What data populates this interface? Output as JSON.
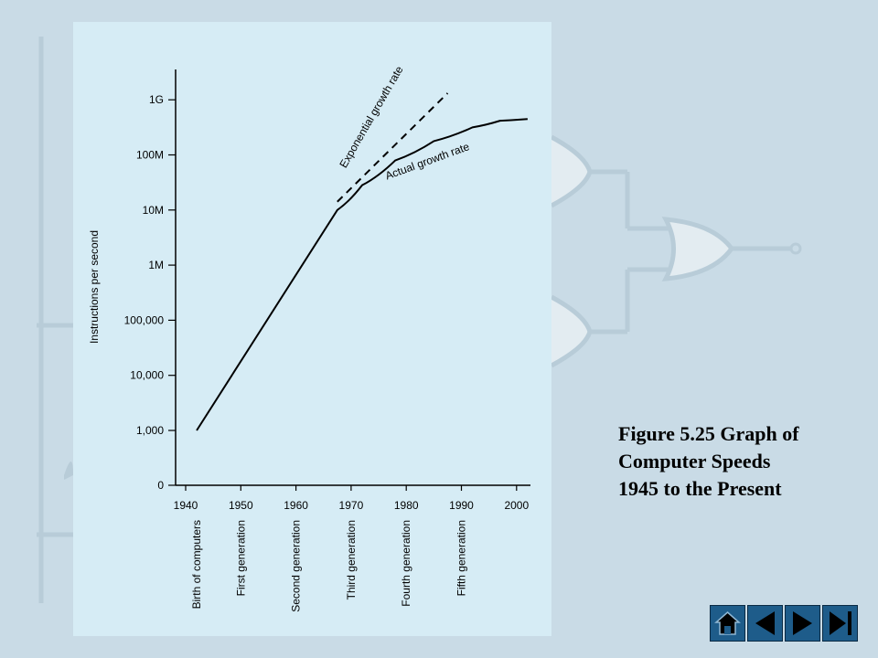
{
  "caption": {
    "line1": "Figure 5.25  Graph of",
    "line2": "Computer Speeds",
    "line3": "1945 to the Present"
  },
  "chart_data": {
    "type": "line",
    "title": "",
    "ylabel": "Instructions per second",
    "xlabel": "",
    "x_ticks": [
      "1940",
      "1950",
      "1960",
      "1970",
      "1980",
      "1990",
      "2000"
    ],
    "y_ticks": [
      "0",
      "1,000",
      "10,000",
      "100,000",
      "1M",
      "10M",
      "100M",
      "1G"
    ],
    "generations": [
      {
        "label": "Birth of computers",
        "year": 1942
      },
      {
        "label": "First generation",
        "year": 1950
      },
      {
        "label": "Second generation",
        "year": 1960
      },
      {
        "label": "Third generation",
        "year": 1970
      },
      {
        "label": "Fourth generation",
        "year": 1980
      },
      {
        "label": "Fifth generation",
        "year": 1990
      }
    ],
    "series": [
      {
        "name": "Actual growth rate",
        "style": "solid",
        "points": [
          [
            1942,
            3.0
          ],
          [
            1967.5,
            7.0
          ],
          [
            1972,
            7.45
          ],
          [
            1978,
            7.9
          ],
          [
            1985,
            8.25
          ],
          [
            1992,
            8.5
          ],
          [
            1997,
            8.62
          ],
          [
            2002,
            8.65
          ]
        ]
      },
      {
        "name": "Exponential growth rate",
        "style": "dashed",
        "points": [
          [
            1967.5,
            7.15
          ],
          [
            1987.5,
            9.12
          ]
        ]
      }
    ],
    "y_scale": "log",
    "grid": false,
    "legend": "none"
  },
  "nav": {
    "home_icon": "home-icon",
    "first_icon": "first-slide-icon",
    "prev_icon": "previous-slide-icon",
    "next_icon": "next-slide-icon",
    "last_icon": "last-slide-icon"
  }
}
